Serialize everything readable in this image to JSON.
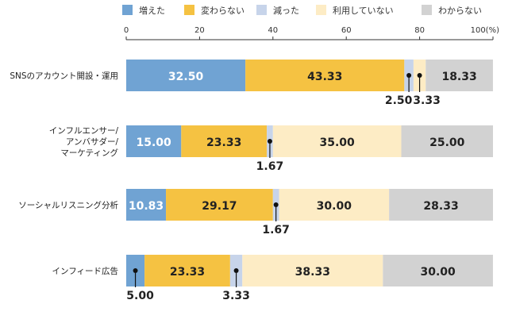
{
  "chart_data": {
    "type": "bar",
    "orientation": "horizontal",
    "stacked": true,
    "xlim": [
      0,
      100
    ],
    "x_ticks": [
      "0",
      "20",
      "40",
      "60",
      "80",
      "100(%)"
    ],
    "x_tick_values": [
      0,
      20,
      40,
      60,
      80,
      100
    ],
    "legend_position": "top",
    "grid": false,
    "categories": [
      [
        "SNSのアカウント開設・運用"
      ],
      [
        "インフルエンサー/",
        "アンバサダー/",
        "マーケティング"
      ],
      [
        "ソーシャルリスニング分析"
      ],
      [
        "インフィード広告"
      ]
    ],
    "series": [
      {
        "name": "増えた",
        "color": "#70a3d3",
        "values": [
          32.5,
          15.0,
          10.83,
          5.0
        ],
        "labels": [
          "32.50",
          "15.00",
          "10.83",
          "5.00"
        ]
      },
      {
        "name": "変わらない",
        "color": "#f5c242",
        "values": [
          43.33,
          23.33,
          29.17,
          23.33
        ],
        "labels": [
          "43.33",
          "23.33",
          "29.17",
          "23.33"
        ]
      },
      {
        "name": "減った",
        "color": "#c7d4ea",
        "values": [
          2.5,
          1.67,
          1.67,
          3.33
        ],
        "labels": [
          "2.50",
          "1.67",
          "1.67",
          "3.33"
        ]
      },
      {
        "name": "利用していない",
        "color": "#fdecc5",
        "values": [
          3.33,
          35.0,
          30.0,
          38.33
        ],
        "labels": [
          "3.33",
          "35.00",
          "30.00",
          "38.33"
        ]
      },
      {
        "name": "わからない",
        "color": "#d2d2d2",
        "values": [
          18.33,
          25.0,
          28.33,
          30.0
        ],
        "labels": [
          "18.33",
          "25.00",
          "28.33",
          "30.00"
        ]
      }
    ]
  }
}
